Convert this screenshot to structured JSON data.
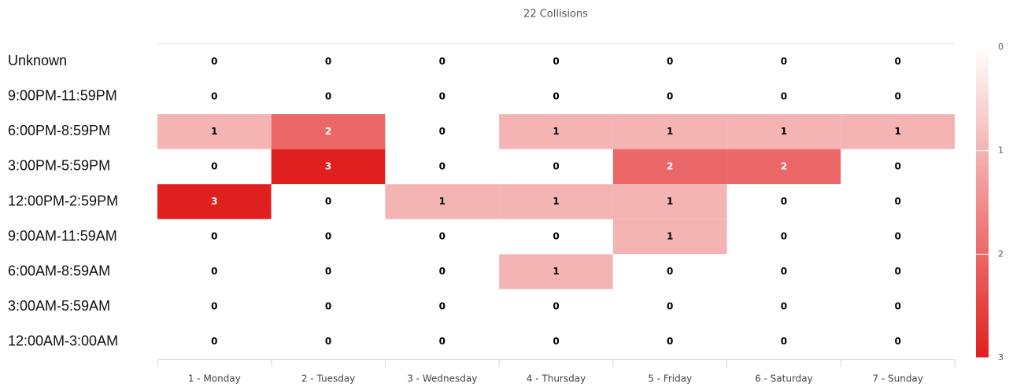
{
  "chart_data": {
    "type": "heatmap",
    "title": "22 Collisions",
    "x_categories": [
      "1 - Monday",
      "2 - Tuesday",
      "3 - Wednesday",
      "4 - Thursday",
      "5 - Friday",
      "6 - Saturday",
      "7 - Sunday"
    ],
    "y_categories": [
      "Unknown",
      "9:00PM-11:59PM",
      "6:00PM-8:59PM",
      "3:00PM-5:59PM",
      "12:00PM-2:59PM",
      "9:00AM-11:59AM",
      "6:00AM-8:59AM",
      "3:00AM-5:59AM",
      "12:00AM-3:00AM"
    ],
    "values": [
      [
        0,
        0,
        0,
        0,
        0,
        0,
        0
      ],
      [
        0,
        0,
        0,
        0,
        0,
        0,
        0
      ],
      [
        1,
        2,
        0,
        1,
        1,
        1,
        1
      ],
      [
        0,
        3,
        0,
        0,
        2,
        2,
        0
      ],
      [
        3,
        0,
        1,
        1,
        1,
        0,
        0
      ],
      [
        0,
        0,
        0,
        0,
        1,
        0,
        0
      ],
      [
        0,
        0,
        0,
        1,
        0,
        0,
        0
      ],
      [
        0,
        0,
        0,
        0,
        0,
        0,
        0
      ],
      [
        0,
        0,
        0,
        0,
        0,
        0,
        0
      ]
    ],
    "zlim": [
      0,
      3
    ],
    "zticks": [
      0,
      1,
      2,
      3
    ],
    "color_scale": [
      "#ffffff",
      "#f4b4b4",
      "#ec6868",
      "#e01f1f"
    ]
  }
}
